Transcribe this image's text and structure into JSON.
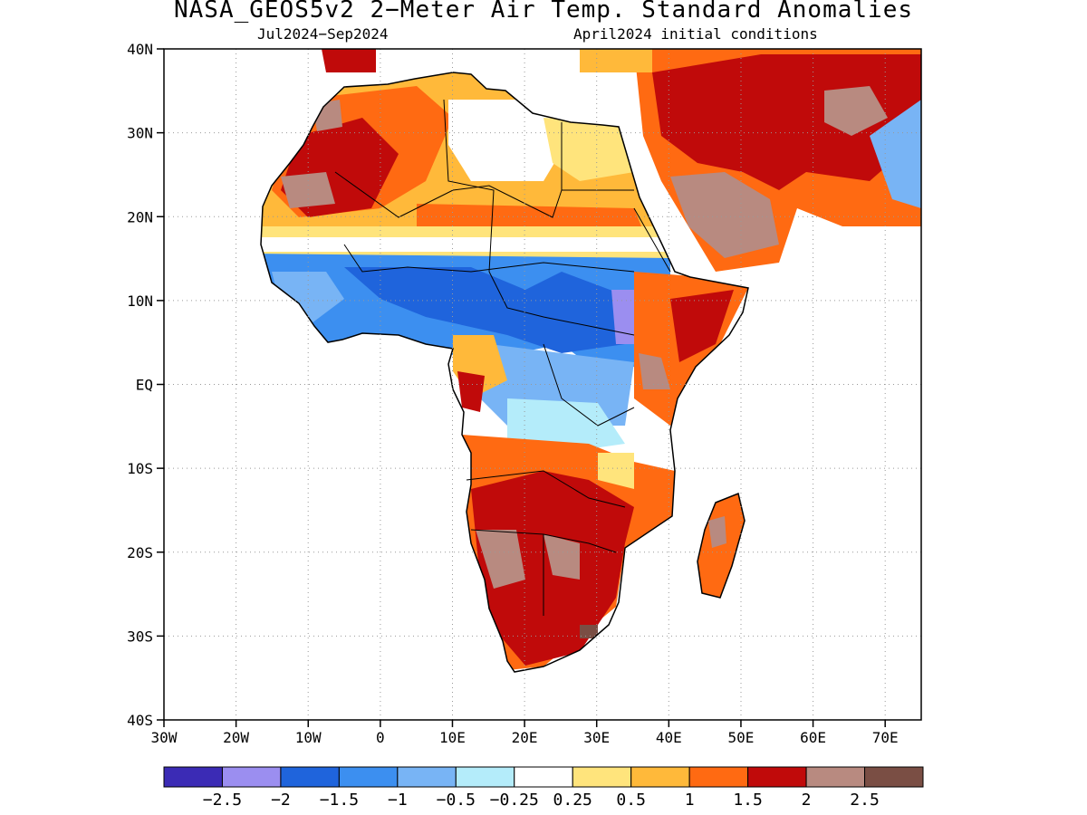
{
  "title": "NASA_GEOS5v2 2−Meter Air Temp. Standard Anomalies",
  "subtitle_left": "Jul2024−Sep2024",
  "subtitle_right": "April2024 initial conditions",
  "map": {
    "lon_range": [
      -30,
      75
    ],
    "lat_range": [
      -40,
      40
    ],
    "lat_ticks": [
      "40N",
      "30N",
      "20N",
      "10N",
      "EQ",
      "10S",
      "20S",
      "30S",
      "40S"
    ],
    "lon_ticks": [
      "30W",
      "20W",
      "10W",
      "0",
      "10E",
      "20E",
      "30E",
      "40E",
      "50E",
      "60E",
      "70E"
    ]
  },
  "colorbar": {
    "colors": [
      "#3b2bb5",
      "#9b8ef0",
      "#1f64dc",
      "#3c8ff0",
      "#78b4f5",
      "#b4ecfa",
      "#ffffff",
      "#ffe47c",
      "#ffb93a",
      "#ff6a12",
      "#c00a0a",
      "#b88a80",
      "#7a4e44"
    ],
    "labels": [
      "−2.5",
      "−2",
      "−1.5",
      "−1",
      "−0.5",
      "−0.25",
      "0.25",
      "0.5",
      "1",
      "1.5",
      "2",
      "2.5"
    ]
  }
}
